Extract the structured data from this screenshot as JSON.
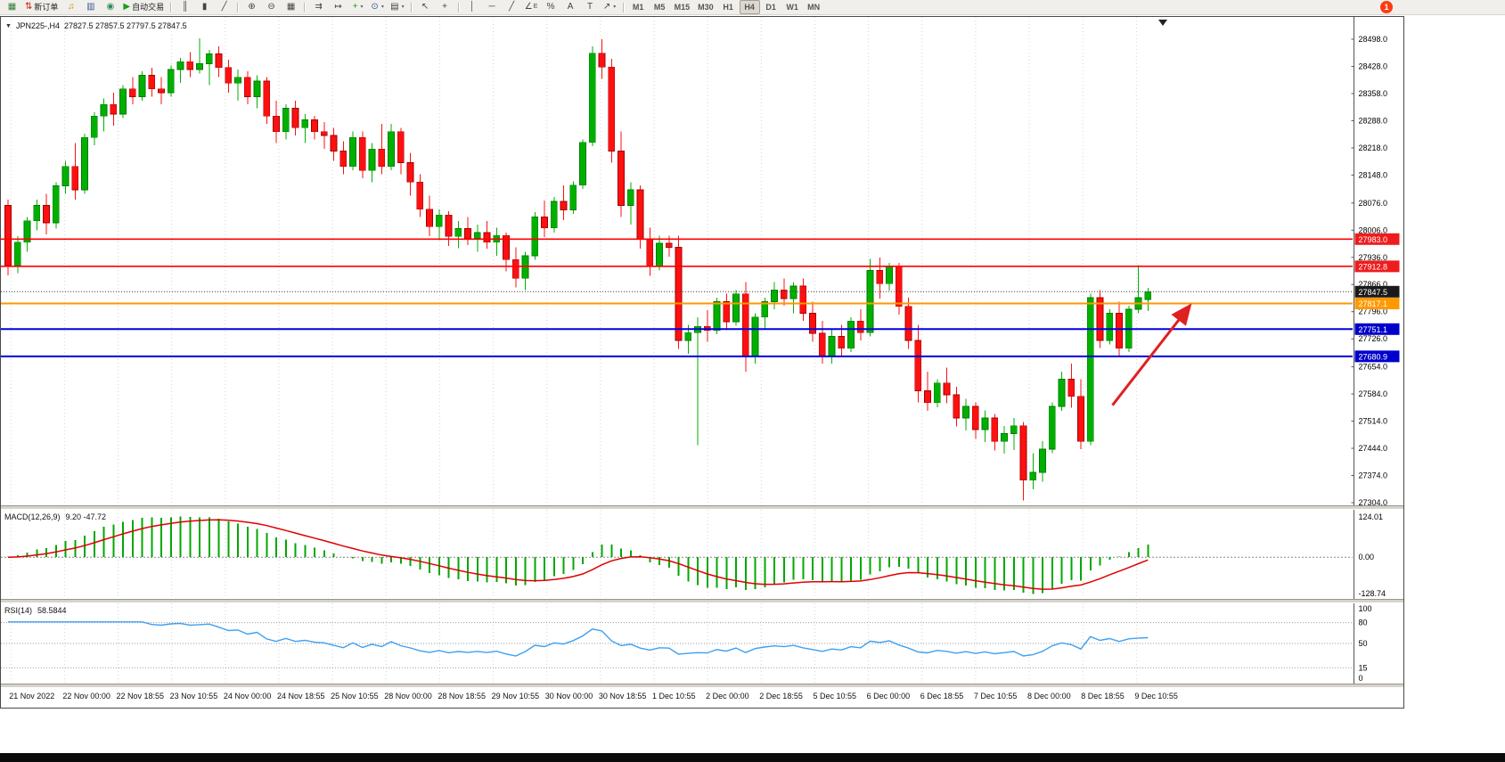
{
  "toolbar": {
    "notification_badge": "1",
    "groups": [
      {
        "buttons": [
          {
            "name": "new-chart-button",
            "glyph": "▦",
            "color": "#2e7d32"
          },
          {
            "name": "new-order-button",
            "glyph": "⇅",
            "color": "#cc2200",
            "label": "新订单"
          },
          {
            "name": "alerts-button",
            "glyph": "♫",
            "color": "#c49000"
          },
          {
            "name": "market-watch-button",
            "glyph": "▥",
            "color": "#33569c"
          },
          {
            "name": "community-button",
            "glyph": "◉",
            "color": "#2e8b57"
          },
          {
            "name": "autotrading-button",
            "glyph": "▶",
            "color": "#18a018",
            "label": "自动交易"
          }
        ]
      },
      {
        "buttons": [
          {
            "name": "bar-chart-button",
            "glyph": "║"
          },
          {
            "name": "candlestick-chart-button",
            "glyph": "▮"
          },
          {
            "name": "line-chart-button",
            "glyph": "╱"
          }
        ]
      },
      {
        "buttons": [
          {
            "name": "zoom-in-button",
            "glyph": "⊕"
          },
          {
            "name": "zoom-out-button",
            "glyph": "⊖"
          },
          {
            "name": "tile-windows-button",
            "glyph": "▦"
          }
        ]
      },
      {
        "buttons": [
          {
            "name": "auto-scroll-button",
            "glyph": "⇉"
          },
          {
            "name": "chart-shift-button",
            "glyph": "↦"
          },
          {
            "name": "indicators-button",
            "glyph": "+",
            "color": "#18a018",
            "dropdown": true
          },
          {
            "name": "periods-button",
            "glyph": "⊙",
            "color": "#33569c",
            "dropdown": true
          },
          {
            "name": "templates-button",
            "glyph": "▤",
            "dropdown": true
          }
        ]
      },
      {
        "buttons": [
          {
            "name": "cursor-button",
            "glyph": "↖"
          },
          {
            "name": "crosshair-button",
            "glyph": "+"
          }
        ]
      },
      {
        "buttons": [
          {
            "name": "vertical-line-button",
            "glyph": "│"
          },
          {
            "name": "horizontal-line-button",
            "glyph": "─"
          },
          {
            "name": "trendline-button",
            "glyph": "╱"
          },
          {
            "name": "equidistant-channel-button",
            "glyph": "∠",
            "sup": "E"
          },
          {
            "name": "fibonacci-button",
            "glyph": "%"
          },
          {
            "name": "text-button",
            "glyph": "A"
          },
          {
            "name": "text-label-button",
            "glyph": "T"
          },
          {
            "name": "arrows-button",
            "glyph": "↗",
            "dropdown": true
          }
        ]
      }
    ],
    "timeframes": [
      {
        "name": "timeframe-m1",
        "label": "M1",
        "active": false
      },
      {
        "name": "timeframe-m5",
        "label": "M5",
        "active": false
      },
      {
        "name": "timeframe-m15",
        "label": "M15",
        "active": false
      },
      {
        "name": "timeframe-m30",
        "label": "M30",
        "active": false
      },
      {
        "name": "timeframe-h1",
        "label": "H1",
        "active": false
      },
      {
        "name": "timeframe-h4",
        "label": "H4",
        "active": true
      },
      {
        "name": "timeframe-d1",
        "label": "D1",
        "active": false
      },
      {
        "name": "timeframe-w1",
        "label": "W1",
        "active": false
      },
      {
        "name": "timeframe-mn",
        "label": "MN",
        "active": false
      }
    ]
  },
  "chart": {
    "collapse_arrow": "▼",
    "symbol_tf": "JPN225-,H4",
    "ohlc": "27827.5 27857.5 27797.5 27847.5"
  },
  "chart_data": {
    "type": "candlestick",
    "title": "JPN225-,H4",
    "x_labels": [
      "21 Nov 2022",
      "22 Nov 00:00",
      "22 Nov 18:55",
      "23 Nov 10:55",
      "24 Nov 00:00",
      "24 Nov 18:55",
      "25 Nov 10:55",
      "28 Nov 00:00",
      "28 Nov 18:55",
      "29 Nov 10:55",
      "30 Nov 00:00",
      "30 Nov 18:55",
      "1 Dec 10:55",
      "2 Dec 00:00",
      "2 Dec 18:55",
      "5 Dec 10:55",
      "6 Dec 00:00",
      "6 Dec 18:55",
      "7 Dec 10:55",
      "8 Dec 00:00",
      "8 Dec 18:55",
      "9 Dec 10:55"
    ],
    "price_axis": {
      "max": 28498.0,
      "min": 27304.0,
      "tick_labels": [
        "28498.0",
        "28428.0",
        "28358.0",
        "28288.0",
        "28218.0",
        "28148.0",
        "28076.0",
        "28006.0",
        "27936.0",
        "27866.0",
        "27796.0",
        "27726.0",
        "27654.0",
        "27584.0",
        "27514.0",
        "27444.0",
        "27374.0",
        "27304.0"
      ]
    },
    "style": {
      "bull_fill": "#00b000",
      "bull_stroke": "#007a00",
      "bear_fill": "#ff1010",
      "bear_stroke": "#a00000",
      "grid_color": "#d4d4d4"
    },
    "candles": [
      [
        28070,
        28085,
        27890,
        27915
      ],
      [
        27915,
        27990,
        27895,
        27975
      ],
      [
        27975,
        28040,
        27950,
        28030
      ],
      [
        28030,
        28085,
        28005,
        28070
      ],
      [
        28070,
        28100,
        27995,
        28025
      ],
      [
        28025,
        28130,
        28010,
        28120
      ],
      [
        28120,
        28185,
        28100,
        28170
      ],
      [
        28170,
        28230,
        28085,
        28110
      ],
      [
        28110,
        28255,
        28100,
        28245
      ],
      [
        28245,
        28310,
        28225,
        28300
      ],
      [
        28300,
        28345,
        28260,
        28330
      ],
      [
        28330,
        28360,
        28275,
        28305
      ],
      [
        28305,
        28380,
        28295,
        28370
      ],
      [
        28370,
        28400,
        28330,
        28350
      ],
      [
        28350,
        28415,
        28340,
        28405
      ],
      [
        28405,
        28425,
        28350,
        28370
      ],
      [
        28370,
        28400,
        28330,
        28360
      ],
      [
        28360,
        28430,
        28350,
        28420
      ],
      [
        28420,
        28450,
        28385,
        28440
      ],
      [
        28440,
        28465,
        28400,
        28420
      ],
      [
        28420,
        28500,
        28410,
        28435
      ],
      [
        28435,
        28470,
        28380,
        28460
      ],
      [
        28460,
        28480,
        28400,
        28425
      ],
      [
        28425,
        28445,
        28360,
        28385
      ],
      [
        28385,
        28420,
        28340,
        28400
      ],
      [
        28400,
        28415,
        28330,
        28350
      ],
      [
        28350,
        28405,
        28320,
        28390
      ],
      [
        28390,
        28400,
        28280,
        28300
      ],
      [
        28300,
        28340,
        28230,
        28260
      ],
      [
        28260,
        28330,
        28240,
        28320
      ],
      [
        28320,
        28340,
        28250,
        28270
      ],
      [
        28270,
        28305,
        28230,
        28290
      ],
      [
        28290,
        28300,
        28240,
        28260
      ],
      [
        28260,
        28285,
        28215,
        28250
      ],
      [
        28250,
        28270,
        28185,
        28210
      ],
      [
        28210,
        28235,
        28150,
        28170
      ],
      [
        28170,
        28260,
        28160,
        28245
      ],
      [
        28245,
        28260,
        28140,
        28160
      ],
      [
        28160,
        28230,
        28130,
        28215
      ],
      [
        28215,
        28280,
        28150,
        28170
      ],
      [
        28170,
        28280,
        28160,
        28260
      ],
      [
        28260,
        28270,
        28150,
        28180
      ],
      [
        28180,
        28205,
        28095,
        28130
      ],
      [
        28130,
        28150,
        28040,
        28060
      ],
      [
        28060,
        28095,
        27990,
        28015
      ],
      [
        28015,
        28060,
        27980,
        28045
      ],
      [
        28045,
        28055,
        27965,
        27990
      ],
      [
        27990,
        28030,
        27960,
        28010
      ],
      [
        28010,
        28040,
        27968,
        27985
      ],
      [
        27985,
        28020,
        27950,
        28000
      ],
      [
        28000,
        28030,
        27958,
        27975
      ],
      [
        27975,
        28012,
        27940,
        27992
      ],
      [
        27992,
        28000,
        27900,
        27930
      ],
      [
        27930,
        27962,
        27858,
        27882
      ],
      [
        27882,
        27950,
        27852,
        27940
      ],
      [
        27940,
        28052,
        27930,
        28040
      ],
      [
        28040,
        28082,
        27988,
        28012
      ],
      [
        28012,
        28092,
        28000,
        28080
      ],
      [
        28080,
        28122,
        28032,
        28058
      ],
      [
        28058,
        28132,
        28048,
        28122
      ],
      [
        28122,
        28240,
        28112,
        28232
      ],
      [
        28232,
        28480,
        28222,
        28462
      ],
      [
        28462,
        28498,
        28396,
        28426
      ],
      [
        28426,
        28448,
        28180,
        28210
      ],
      [
        28210,
        28260,
        28040,
        28070
      ],
      [
        28070,
        28130,
        28020,
        28110
      ],
      [
        28110,
        28122,
        27958,
        27982
      ],
      [
        27982,
        28012,
        27888,
        27912
      ],
      [
        27912,
        27992,
        27902,
        27972
      ],
      [
        27972,
        27992,
        27938,
        27962
      ],
      [
        27962,
        27992,
        27700,
        27722
      ],
      [
        27722,
        27762,
        27688,
        27742
      ],
      [
        27742,
        27782,
        27452,
        27758
      ],
      [
        27758,
        27800,
        27718,
        27748
      ],
      [
        27748,
        27832,
        27738,
        27822
      ],
      [
        27822,
        27842,
        27748,
        27770
      ],
      [
        27770,
        27852,
        27760,
        27842
      ],
      [
        27842,
        27872,
        27642,
        27682
      ],
      [
        27682,
        27792,
        27662,
        27782
      ],
      [
        27782,
        27832,
        27752,
        27822
      ],
      [
        27822,
        27872,
        27802,
        27852
      ],
      [
        27852,
        27882,
        27812,
        27830
      ],
      [
        27830,
        27872,
        27792,
        27862
      ],
      [
        27862,
        27882,
        27772,
        27792
      ],
      [
        27792,
        27822,
        27718,
        27740
      ],
      [
        27740,
        27772,
        27662,
        27682
      ],
      [
        27682,
        27752,
        27662,
        27732
      ],
      [
        27732,
        27762,
        27682,
        27702
      ],
      [
        27702,
        27782,
        27692,
        27772
      ],
      [
        27772,
        27802,
        27722,
        27742
      ],
      [
        27742,
        27932,
        27732,
        27902
      ],
      [
        27902,
        27936,
        27830,
        27868
      ],
      [
        27868,
        27922,
        27850,
        27912
      ],
      [
        27912,
        27922,
        27788,
        27810
      ],
      [
        27810,
        27832,
        27700,
        27722
      ],
      [
        27722,
        27762,
        27562,
        27592
      ],
      [
        27592,
        27642,
        27540,
        27562
      ],
      [
        27562,
        27622,
        27550,
        27612
      ],
      [
        27612,
        27652,
        27560,
        27582
      ],
      [
        27582,
        27602,
        27500,
        27522
      ],
      [
        27522,
        27572,
        27490,
        27552
      ],
      [
        27552,
        27562,
        27468,
        27492
      ],
      [
        27492,
        27542,
        27460,
        27522
      ],
      [
        27522,
        27532,
        27438,
        27462
      ],
      [
        27462,
        27502,
        27430,
        27482
      ],
      [
        27482,
        27522,
        27440,
        27502
      ],
      [
        27502,
        27512,
        27310,
        27362
      ],
      [
        27362,
        27432,
        27338,
        27382
      ],
      [
        27382,
        27462,
        27358,
        27442
      ],
      [
        27442,
        27562,
        27432,
        27552
      ],
      [
        27552,
        27642,
        27540,
        27622
      ],
      [
        27622,
        27662,
        27548,
        27578
      ],
      [
        27578,
        27622,
        27442,
        27462
      ],
      [
        27462,
        27842,
        27452,
        27832
      ],
      [
        27832,
        27852,
        27702,
        27722
      ],
      [
        27722,
        27802,
        27712,
        27792
      ],
      [
        27792,
        27822,
        27682,
        27702
      ],
      [
        27702,
        27812,
        27692,
        27802
      ],
      [
        27802,
        27916,
        27792,
        27832
      ],
      [
        27827.5,
        27857.5,
        27797.5,
        27847.5
      ]
    ],
    "hlines": [
      {
        "price": 27983.0,
        "label": "27983.0",
        "color": "#ff0000",
        "badge": "#ee1c1c",
        "style": "solid",
        "width": 1.6
      },
      {
        "price": 27912.8,
        "label": "27912.8",
        "color": "#ff0000",
        "badge": "#ee1c1c",
        "style": "solid",
        "width": 1.6
      },
      {
        "price": 27847.5,
        "label": "27847.5",
        "color": "#3c3c3c",
        "badge": "#1a1a1a",
        "style": "dot",
        "width": 1
      },
      {
        "price": 27817.1,
        "label": "27817.1",
        "color": "#ff9900",
        "badge": "#ff9900",
        "style": "solid",
        "width": 2
      },
      {
        "price": 27751.1,
        "label": "27751.1",
        "color": "#0000e0",
        "badge": "#0000cc",
        "style": "solid",
        "width": 2
      },
      {
        "price": 27680.9,
        "label": "27680.9",
        "color": "#0000e0",
        "badge": "#0000cc",
        "style": "solid",
        "width": 2
      }
    ],
    "arrow_annotation": {
      "from_index": 115.3,
      "from_price": 27555,
      "to_index": 123.4,
      "to_price": 27812,
      "color": "#e02020",
      "width": 3
    },
    "indicators": {
      "macd": {
        "label": "MACD(12,26,9)",
        "values": "9.20 -47.72",
        "params": [
          12,
          26,
          9
        ],
        "axis_labels": [
          "124.01",
          "0.00",
          "-128.74"
        ],
        "histogram_color": "#00a800",
        "signal_color": "#e00000"
      },
      "rsi": {
        "label": "RSI(14)",
        "value": "58.5844",
        "period": 14,
        "lines": [
          80,
          50,
          15
        ],
        "axis_levels": [
          100,
          80,
          50,
          15,
          0
        ],
        "axis_labels": [
          "100",
          "80",
          "50",
          "15",
          "0"
        ],
        "line_color": "#3fa0f0"
      }
    }
  }
}
